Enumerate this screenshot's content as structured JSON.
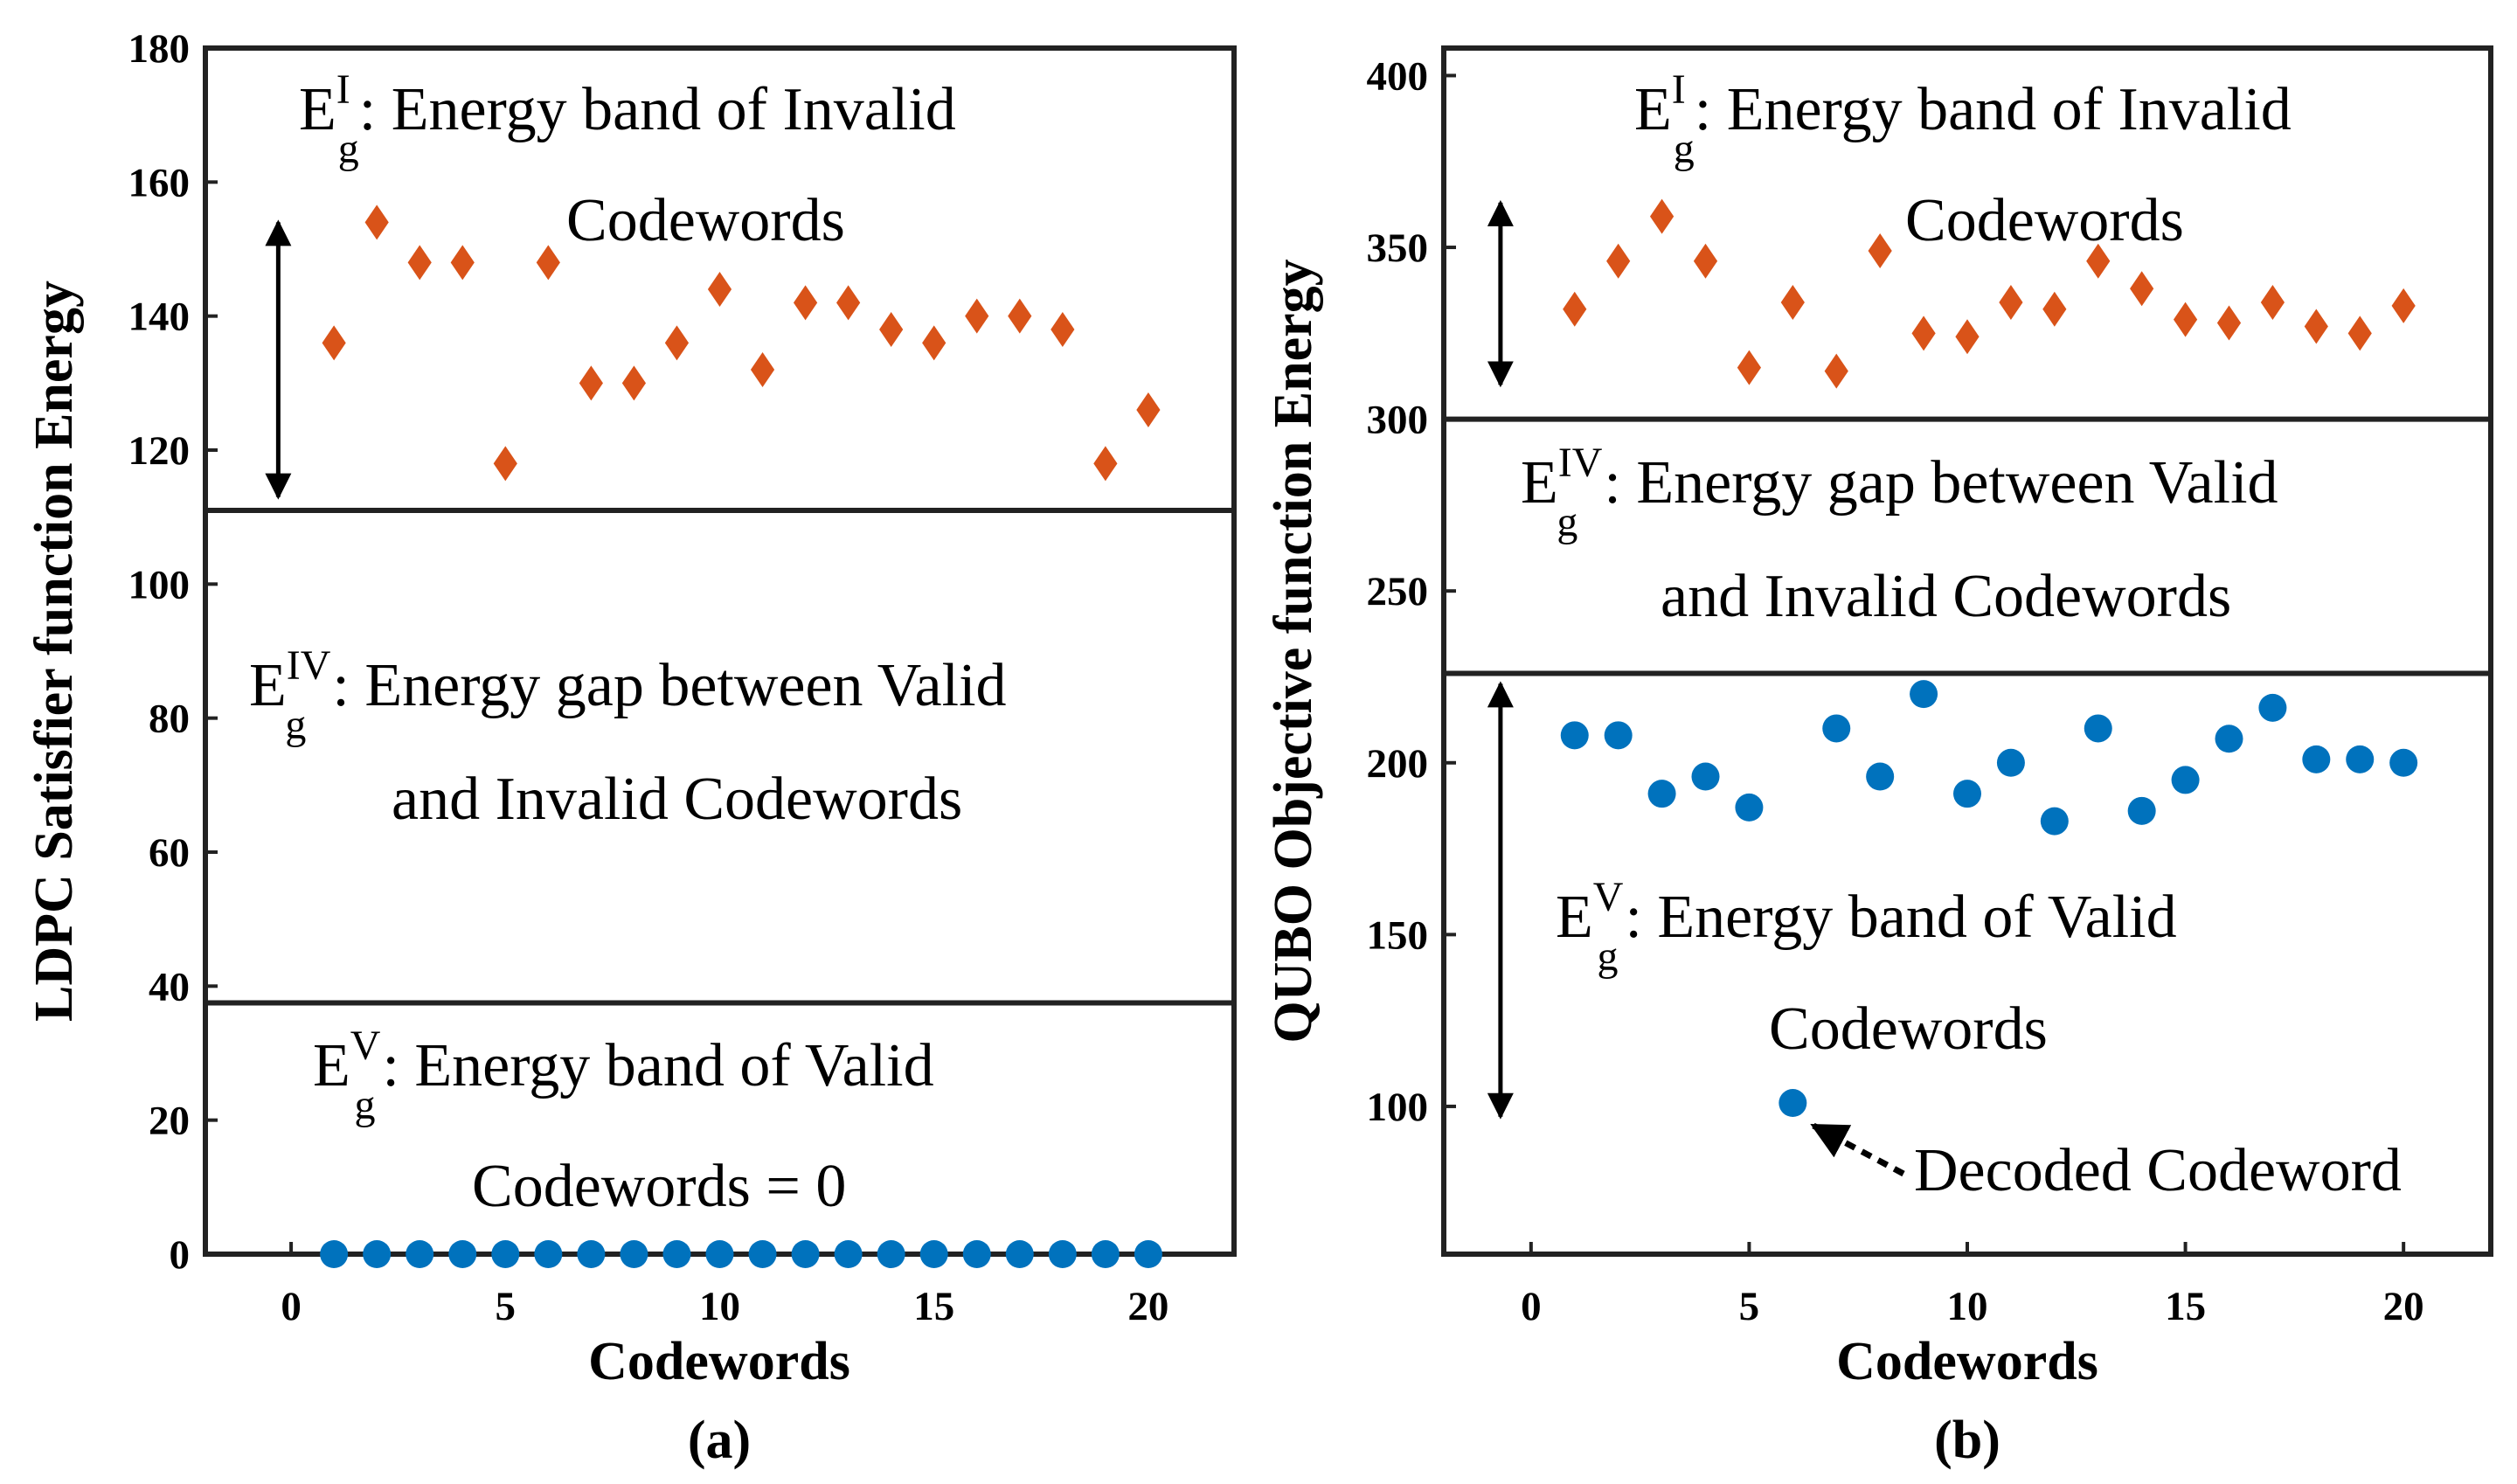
{
  "chart_data": [
    {
      "type": "scatter",
      "xlabel": "Codewords",
      "ylabel": "LDPC Satisfier function Energy",
      "panel_label": "(a)",
      "xlim": [
        -2,
        22
      ],
      "ylim": [
        0,
        180
      ],
      "xticks": [
        "0",
        "5",
        "10",
        "15",
        "20"
      ],
      "yticks": [
        "0",
        "20",
        "40",
        "60",
        "80",
        "100",
        "120",
        "140",
        "160",
        "180"
      ],
      "series": [
        {
          "marker": "diamond",
          "color": "#D95319",
          "x": [
            1,
            2,
            3,
            4,
            5,
            6,
            7,
            8,
            9,
            10,
            11,
            12,
            13,
            14,
            15,
            16,
            17,
            18,
            19,
            20
          ],
          "y": [
            136,
            154,
            148,
            148,
            118,
            148,
            130,
            130,
            136,
            144,
            132,
            142,
            142,
            138,
            136,
            140,
            140,
            138,
            118,
            126
          ]
        },
        {
          "marker": "circle",
          "color": "#0072BD",
          "x": [
            1,
            2,
            3,
            4,
            5,
            6,
            7,
            8,
            9,
            10,
            11,
            12,
            13,
            14,
            15,
            16,
            17,
            18,
            19,
            20
          ],
          "y": [
            0,
            0,
            0,
            0,
            0,
            0,
            0,
            0,
            0,
            0,
            0,
            0,
            0,
            0,
            0,
            0,
            0,
            0,
            0,
            0
          ]
        }
      ],
      "hlines": [
        111,
        37.5
      ],
      "arrow_range": [
        113,
        154
      ],
      "annotations": {
        "invalid_band": {
          "E": "E",
          "sup": "I",
          "sub": "g",
          "line1": ":  Energy band of Invalid",
          "line2": "Codewords"
        },
        "gap": {
          "E": "E",
          "sup": "IV",
          "sub": "g",
          "line1": ": Energy gap between Valid",
          "line2": "and Invalid Codewords"
        },
        "valid_band": {
          "E": "E",
          "sup": "V",
          "sub": "g",
          "line1": ": Energy band of Valid",
          "line2": "Codewords = 0"
        }
      }
    },
    {
      "type": "scatter",
      "xlabel": "Codewords",
      "ylabel": "QUBO Objective function Energy",
      "panel_label": "(b)",
      "xlim": [
        -2,
        22
      ],
      "ylim": [
        57,
        408
      ],
      "xticks": [
        "0",
        "5",
        "10",
        "15",
        "20"
      ],
      "yticks": [
        "100",
        "150",
        "200",
        "250",
        "300",
        "350",
        "400"
      ],
      "series": [
        {
          "marker": "diamond",
          "color": "#D95319",
          "x": [
            1,
            2,
            3,
            4,
            5,
            6,
            7,
            8,
            9,
            10,
            11,
            12,
            13,
            14,
            15,
            16,
            17,
            18,
            19,
            20
          ],
          "y": [
            332,
            346,
            359,
            346,
            315,
            334,
            314,
            349,
            325,
            324,
            334,
            332,
            346,
            338,
            329,
            328,
            334,
            327,
            325,
            333
          ]
        },
        {
          "marker": "circle",
          "color": "#0072BD",
          "x": [
            1,
            2,
            3,
            4,
            5,
            6,
            7,
            8,
            9,
            10,
            11,
            12,
            13,
            14,
            15,
            16,
            17,
            18,
            19,
            20
          ],
          "y": [
            208,
            208,
            191,
            196,
            187,
            101,
            210,
            196,
            220,
            191,
            200,
            183,
            210,
            186,
            195,
            207,
            216,
            201,
            201,
            200
          ]
        }
      ],
      "hlines": [
        300,
        226
      ],
      "arrow_range_top": [
        310,
        363
      ],
      "arrow_range_bottom": [
        97,
        223
      ],
      "annotations": {
        "invalid_band": {
          "E": "E",
          "sup": "I",
          "sub": "g",
          "line1": ": Energy band of Invalid",
          "line2": "Codewords"
        },
        "gap": {
          "E": "E",
          "sup": "IV",
          "sub": "g",
          "line1": ": Energy gap between Valid",
          "line2": "and Invalid Codewords"
        },
        "valid_band": {
          "E": "E",
          "sup": "V",
          "sub": "g",
          "line1": ": Energy band of Valid",
          "line2": "Codewords"
        },
        "decoded": "Decoded Codeword"
      }
    }
  ]
}
